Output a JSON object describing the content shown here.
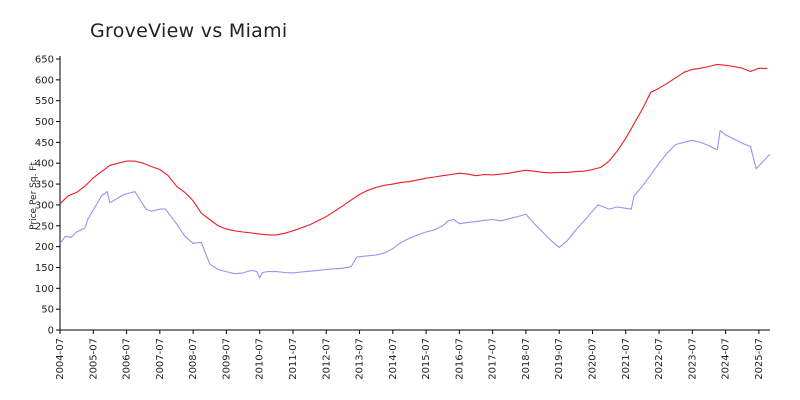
{
  "chart_data": {
    "type": "line",
    "title": "GroveView vs Miami",
    "xlabel": "",
    "ylabel": "Price Per Sq. Ft.",
    "ylim": [
      0,
      650
    ],
    "yticks": [
      0,
      50,
      100,
      150,
      200,
      250,
      300,
      350,
      400,
      450,
      500,
      550,
      600,
      650
    ],
    "xlim": [
      "2004-07",
      "2025-11"
    ],
    "xticks": [
      "2004-07",
      "2005-07",
      "2006-07",
      "2007-07",
      "2008-07",
      "2009-07",
      "2010-07",
      "2011-07",
      "2012-07",
      "2013-07",
      "2014-07",
      "2015-07",
      "2016-07",
      "2017-07",
      "2018-07",
      "2019-07",
      "2020-07",
      "2021-07",
      "2022-07",
      "2023-07",
      "2024-07",
      "2025-07"
    ],
    "grid": false,
    "legend": "none",
    "series": [
      {
        "color": "#ee1c25",
        "points": [
          [
            "2004-07",
            303
          ],
          [
            "2004-10",
            322
          ],
          [
            "2005-01",
            330
          ],
          [
            "2005-04",
            345
          ],
          [
            "2005-07",
            365
          ],
          [
            "2005-10",
            380
          ],
          [
            "2006-01",
            395
          ],
          [
            "2006-04",
            400
          ],
          [
            "2006-07",
            405
          ],
          [
            "2006-10",
            405
          ],
          [
            "2007-01",
            400
          ],
          [
            "2007-04",
            392
          ],
          [
            "2007-07",
            385
          ],
          [
            "2007-10",
            370
          ],
          [
            "2008-01",
            345
          ],
          [
            "2008-04",
            330
          ],
          [
            "2008-07",
            310
          ],
          [
            "2008-10",
            280
          ],
          [
            "2009-01",
            265
          ],
          [
            "2009-04",
            250
          ],
          [
            "2009-07",
            242
          ],
          [
            "2009-10",
            238
          ],
          [
            "2010-01",
            235
          ],
          [
            "2010-04",
            233
          ],
          [
            "2010-07",
            230
          ],
          [
            "2010-10",
            228
          ],
          [
            "2011-01",
            228
          ],
          [
            "2011-04",
            232
          ],
          [
            "2011-07",
            238
          ],
          [
            "2011-10",
            245
          ],
          [
            "2012-01",
            252
          ],
          [
            "2012-04",
            262
          ],
          [
            "2012-07",
            272
          ],
          [
            "2012-10",
            285
          ],
          [
            "2013-01",
            298
          ],
          [
            "2013-04",
            312
          ],
          [
            "2013-07",
            325
          ],
          [
            "2013-10",
            335
          ],
          [
            "2014-01",
            342
          ],
          [
            "2014-04",
            347
          ],
          [
            "2014-07",
            350
          ],
          [
            "2014-10",
            354
          ],
          [
            "2015-01",
            356
          ],
          [
            "2015-04",
            360
          ],
          [
            "2015-07",
            364
          ],
          [
            "2015-10",
            367
          ],
          [
            "2016-01",
            370
          ],
          [
            "2016-04",
            373
          ],
          [
            "2016-07",
            376
          ],
          [
            "2016-10",
            374
          ],
          [
            "2017-01",
            370
          ],
          [
            "2017-04",
            373
          ],
          [
            "2017-07",
            372
          ],
          [
            "2017-10",
            374
          ],
          [
            "2018-01",
            376
          ],
          [
            "2018-04",
            380
          ],
          [
            "2018-07",
            383
          ],
          [
            "2018-10",
            381
          ],
          [
            "2019-01",
            378
          ],
          [
            "2019-04",
            377
          ],
          [
            "2019-07",
            378
          ],
          [
            "2019-10",
            378
          ],
          [
            "2020-01",
            380
          ],
          [
            "2020-04",
            381
          ],
          [
            "2020-07",
            385
          ],
          [
            "2020-10",
            390
          ],
          [
            "2021-01",
            405
          ],
          [
            "2021-04",
            430
          ],
          [
            "2021-07",
            460
          ],
          [
            "2021-10",
            495
          ],
          [
            "2022-01",
            530
          ],
          [
            "2022-04",
            570
          ],
          [
            "2022-07",
            580
          ],
          [
            "2022-10",
            592
          ],
          [
            "2023-01",
            605
          ],
          [
            "2023-04",
            618
          ],
          [
            "2023-07",
            625
          ],
          [
            "2023-10",
            628
          ],
          [
            "2024-01",
            632
          ],
          [
            "2024-04",
            637
          ],
          [
            "2024-07",
            635
          ],
          [
            "2024-10",
            632
          ],
          [
            "2025-01",
            628
          ],
          [
            "2025-04",
            620
          ],
          [
            "2025-07",
            628
          ],
          [
            "2025-10",
            627
          ]
        ]
      },
      {
        "color": "#9494f0",
        "points": [
          [
            "2004-07",
            207
          ],
          [
            "2004-09",
            225
          ],
          [
            "2004-11",
            222
          ],
          [
            "2005-01",
            235
          ],
          [
            "2005-04",
            245
          ],
          [
            "2005-05",
            265
          ],
          [
            "2005-10",
            322
          ],
          [
            "2005-12",
            332
          ],
          [
            "2006-01",
            305
          ],
          [
            "2006-06",
            325
          ],
          [
            "2006-10",
            332
          ],
          [
            "2007-02",
            290
          ],
          [
            "2007-04",
            285
          ],
          [
            "2007-07",
            290
          ],
          [
            "2007-09",
            290
          ],
          [
            "2008-01",
            255
          ],
          [
            "2008-04",
            225
          ],
          [
            "2008-07",
            208
          ],
          [
            "2008-10",
            210
          ],
          [
            "2009-01",
            158
          ],
          [
            "2009-04",
            145
          ],
          [
            "2009-07",
            140
          ],
          [
            "2009-10",
            135
          ],
          [
            "2010-01",
            137
          ],
          [
            "2010-04",
            143
          ],
          [
            "2010-06",
            140
          ],
          [
            "2010-07",
            125
          ],
          [
            "2010-08",
            138
          ],
          [
            "2010-10",
            140
          ],
          [
            "2011-01",
            140
          ],
          [
            "2011-04",
            138
          ],
          [
            "2011-07",
            137
          ],
          [
            "2011-10",
            139
          ],
          [
            "2012-01",
            141
          ],
          [
            "2012-04",
            143
          ],
          [
            "2012-07",
            145
          ],
          [
            "2012-10",
            147
          ],
          [
            "2013-01",
            148
          ],
          [
            "2013-04",
            152
          ],
          [
            "2013-06",
            175
          ],
          [
            "2013-10",
            178
          ],
          [
            "2014-01",
            180
          ],
          [
            "2014-04",
            185
          ],
          [
            "2014-07",
            195
          ],
          [
            "2014-10",
            210
          ],
          [
            "2015-01",
            220
          ],
          [
            "2015-04",
            228
          ],
          [
            "2015-07",
            235
          ],
          [
            "2015-10",
            240
          ],
          [
            "2016-01",
            250
          ],
          [
            "2016-03",
            262
          ],
          [
            "2016-05",
            265
          ],
          [
            "2016-07",
            255
          ],
          [
            "2016-10",
            258
          ],
          [
            "2017-01",
            260
          ],
          [
            "2017-04",
            263
          ],
          [
            "2017-07",
            265
          ],
          [
            "2017-10",
            262
          ],
          [
            "2018-01",
            267
          ],
          [
            "2018-04",
            272
          ],
          [
            "2018-07",
            278
          ],
          [
            "2018-10",
            255
          ],
          [
            "2019-01",
            235
          ],
          [
            "2019-04",
            215
          ],
          [
            "2019-07",
            198
          ],
          [
            "2019-10",
            215
          ],
          [
            "2020-01",
            240
          ],
          [
            "2020-04",
            262
          ],
          [
            "2020-07",
            285
          ],
          [
            "2020-09",
            300
          ],
          [
            "2020-11",
            295
          ],
          [
            "2021-01",
            290
          ],
          [
            "2021-04",
            295
          ],
          [
            "2021-07",
            292
          ],
          [
            "2021-09",
            290
          ],
          [
            "2021-10",
            322
          ],
          [
            "2022-01",
            345
          ],
          [
            "2022-04",
            372
          ],
          [
            "2022-07",
            400
          ],
          [
            "2022-10",
            425
          ],
          [
            "2023-01",
            445
          ],
          [
            "2023-07",
            455
          ],
          [
            "2023-10",
            450
          ],
          [
            "2024-01",
            442
          ],
          [
            "2024-04",
            432
          ],
          [
            "2024-05",
            478
          ],
          [
            "2024-07",
            468
          ],
          [
            "2024-10",
            458
          ],
          [
            "2025-01",
            448
          ],
          [
            "2025-04",
            440
          ],
          [
            "2025-06",
            387
          ],
          [
            "2025-11",
            422
          ]
        ]
      }
    ]
  }
}
